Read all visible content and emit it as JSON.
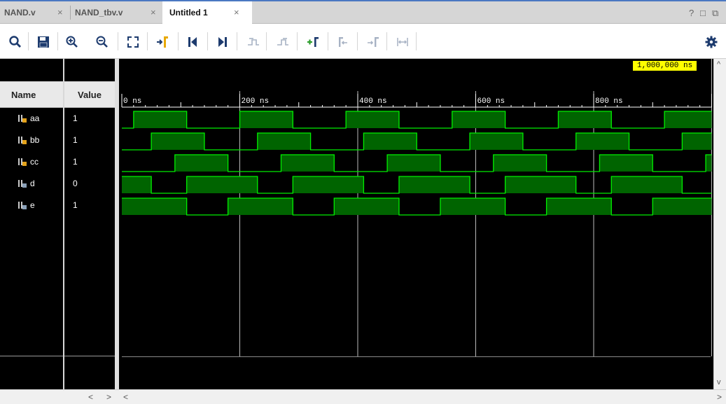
{
  "tabs": [
    {
      "label": "NAND.v",
      "close": "×",
      "active": false
    },
    {
      "label": "NAND_tbv.v",
      "close": "×",
      "active": false
    },
    {
      "label": "Untitled 1",
      "close": "×",
      "active": true
    }
  ],
  "window_controls": {
    "help": "?",
    "maximize": "□",
    "float": "⧉"
  },
  "toolbar": {
    "icons": [
      "search-icon",
      "save-icon",
      "zoom-in-icon",
      "zoom-out-icon",
      "zoom-fit-icon",
      "goto-cursor-icon",
      "goto-start-icon",
      "goto-end-icon",
      "previous-transition-icon",
      "next-transition-icon",
      "add-marker-icon",
      "previous-marker-icon",
      "next-marker-icon",
      "swap-cursors-icon",
      "settings-gear-icon"
    ]
  },
  "columns": {
    "name": "Name",
    "value": "Value"
  },
  "signals": [
    {
      "name": "aa",
      "value": "1",
      "icon": "signal-input-icon"
    },
    {
      "name": "bb",
      "value": "1",
      "icon": "signal-input-icon"
    },
    {
      "name": "cc",
      "value": "1",
      "icon": "signal-input-icon"
    },
    {
      "name": "d",
      "value": "0",
      "icon": "signal-output-icon"
    },
    {
      "name": "e",
      "value": "1",
      "icon": "signal-output-icon"
    }
  ],
  "timeline": {
    "ticks": [
      "0 ns",
      "200 ns",
      "400 ns",
      "600 ns",
      "800 ns"
    ],
    "cursor": "1,000,000 ns"
  },
  "waveforms": {
    "period_ns": 1000,
    "high_intervals": {
      "aa": [
        [
          20,
          110
        ],
        [
          200,
          290
        ],
        [
          380,
          470
        ],
        [
          560,
          650
        ],
        [
          740,
          830
        ],
        [
          920,
          1000
        ]
      ],
      "bb": [
        [
          50,
          140
        ],
        [
          230,
          320
        ],
        [
          410,
          500
        ],
        [
          590,
          680
        ],
        [
          770,
          860
        ],
        [
          950,
          1000
        ]
      ],
      "cc": [
        [
          90,
          180
        ],
        [
          270,
          360
        ],
        [
          450,
          540
        ],
        [
          630,
          720
        ],
        [
          810,
          900
        ],
        [
          990,
          1000
        ]
      ],
      "d": [
        [
          0,
          50
        ],
        [
          110,
          230
        ],
        [
          290,
          410
        ],
        [
          470,
          590
        ],
        [
          650,
          770
        ],
        [
          830,
          950
        ]
      ],
      "e": [
        [
          0,
          110
        ],
        [
          180,
          290
        ],
        [
          360,
          470
        ],
        [
          540,
          650
        ],
        [
          720,
          830
        ],
        [
          900,
          1000
        ]
      ]
    }
  },
  "colors": {
    "wave": "#00ee00",
    "wave_fill": "#006400",
    "background": "#000000",
    "cursor_label": "#ffff00",
    "grid": "#bbbbbb"
  },
  "scroll": {
    "left": "<",
    "right": ">",
    "up": "^",
    "down": "v"
  }
}
